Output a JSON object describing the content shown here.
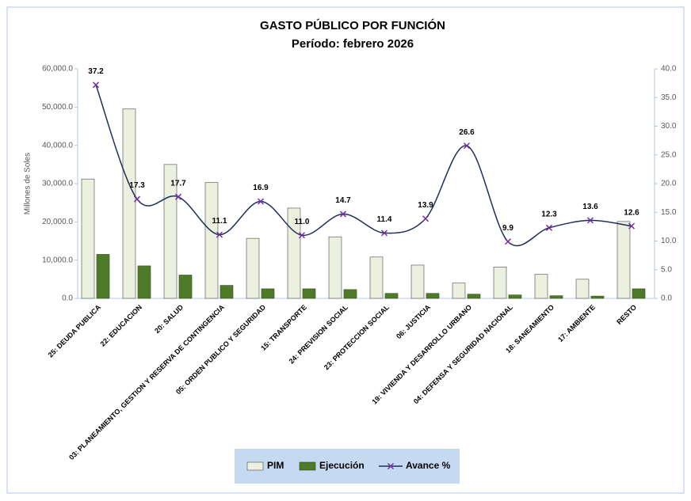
{
  "chart_data": {
    "type": "bar_line",
    "title": "GASTO PÚBLICO POR FUNCIÓN",
    "subtitle": "Período: febrero 2026",
    "y_label": "Millones de Soles",
    "categories": [
      "25: DEUDA PUBLICA",
      "22: EDUCACION",
      "20: SALUD",
      "03: PLANEAMIENTO, GESTION Y RESERVA DE CONTINGENCIA",
      "05: ORDEN PUBLICO Y SEGURIDAD",
      "15: TRANSPORTE",
      "24: PREVISION SOCIAL",
      "23: PROTECCION SOCIAL",
      "06: JUSTICIA",
      "19: VIVIENDA Y DESARROLLO URBANO",
      "04: DEFENSA Y SEGURIDAD NACIONAL",
      "18: SANEAMIENTO",
      "17: AMBIENTE",
      "RESTO"
    ],
    "series": [
      {
        "name": "PIM",
        "color": "#ebf1de",
        "values": [
          31200,
          49500,
          35000,
          30300,
          15700,
          23600,
          16100,
          10800,
          8700,
          4000,
          8200,
          6300,
          5000,
          20100
        ]
      },
      {
        "name": "Ejecución",
        "color": "#4f7a28",
        "values": [
          11500,
          8500,
          6100,
          3400,
          2500,
          2500,
          2300,
          1300,
          1300,
          1100,
          900,
          700,
          600,
          2500
        ]
      },
      {
        "name": "Avance %",
        "color": "#1f2d5a",
        "marker_color": "#7030a0",
        "axis": "y2",
        "values": [
          37.2,
          17.3,
          17.7,
          11.1,
          16.9,
          11.0,
          14.7,
          11.4,
          13.9,
          26.6,
          9.9,
          12.3,
          13.6,
          12.6
        ],
        "value_labels": [
          "37.2",
          "17.3",
          "17.7",
          "11.1",
          "16.9",
          "11.0",
          "14.7",
          "11.4",
          "13.9",
          "26.6",
          "9.9",
          "12.3",
          "13.6",
          "12.6"
        ]
      }
    ],
    "ylim": [
      0,
      60000
    ],
    "yticks": [
      {
        "value": 0,
        "label": "0.0"
      },
      {
        "value": 10000,
        "label": "10,000.0"
      },
      {
        "value": 20000,
        "label": "20,000.0"
      },
      {
        "value": 30000,
        "label": "30,000.0"
      },
      {
        "value": 40000,
        "label": "40,000.0"
      },
      {
        "value": 50000,
        "label": "50,000.0"
      },
      {
        "value": 60000,
        "label": "60,000.0"
      }
    ],
    "y2lim": [
      0,
      40
    ],
    "y2ticks": [
      {
        "value": 0,
        "label": "0.0"
      },
      {
        "value": 5,
        "label": "5.0"
      },
      {
        "value": 10,
        "label": "10.0"
      },
      {
        "value": 15,
        "label": "15.0"
      },
      {
        "value": 20,
        "label": "20.0"
      },
      {
        "value": 25,
        "label": "25.0"
      },
      {
        "value": 30,
        "label": "30.0"
      },
      {
        "value": 35,
        "label": "35.0"
      },
      {
        "value": 40,
        "label": "40.0"
      }
    ],
    "legend": "bottom"
  }
}
